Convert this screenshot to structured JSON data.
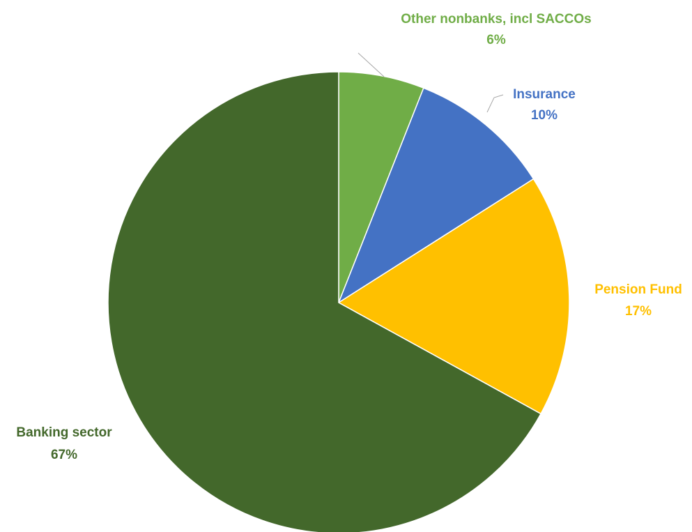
{
  "chart_data": {
    "type": "pie",
    "start_angle_deg": 0,
    "direction": "clockwise",
    "legend": "none",
    "slices": [
      {
        "label": "Other nonbanks, incl SACCOs",
        "value": 6,
        "value_label": "6%",
        "color": "#70AD47"
      },
      {
        "label": "Insurance",
        "value": 10,
        "value_label": "10%",
        "color": "#4472C4"
      },
      {
        "label": "Pension Fund",
        "value": 17,
        "value_label": "17%",
        "color": "#FFC000"
      },
      {
        "label": "Banking sector",
        "value": 67,
        "value_label": "67%",
        "color": "#43682B"
      }
    ]
  }
}
